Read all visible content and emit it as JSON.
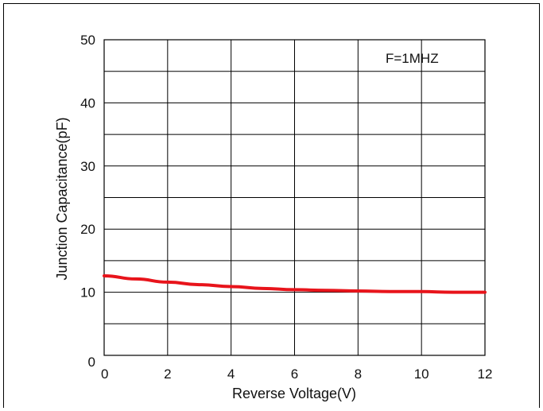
{
  "chart_data": {
    "type": "line",
    "xlabel": "Reverse Voltage(V)",
    "ylabel": "Junction Capacitance(pF)",
    "annotation": "F=1MHZ",
    "xlim": [
      0,
      12
    ],
    "ylim": [
      0,
      50
    ],
    "xticks": [
      "0",
      "2",
      "4",
      "6",
      "8",
      "10",
      "12"
    ],
    "yticks": [
      "0",
      "10",
      "20",
      "30",
      "40",
      "50"
    ],
    "grid": true,
    "series": [
      {
        "color": "#e8141b",
        "x": [
          0,
          1,
          2,
          3,
          4,
          5,
          6,
          7,
          8,
          9,
          10,
          11,
          12
        ],
        "y": [
          12.6,
          12.1,
          11.6,
          11.2,
          10.9,
          10.6,
          10.4,
          10.3,
          10.2,
          10.1,
          10.1,
          10.0,
          10.0
        ]
      }
    ]
  }
}
